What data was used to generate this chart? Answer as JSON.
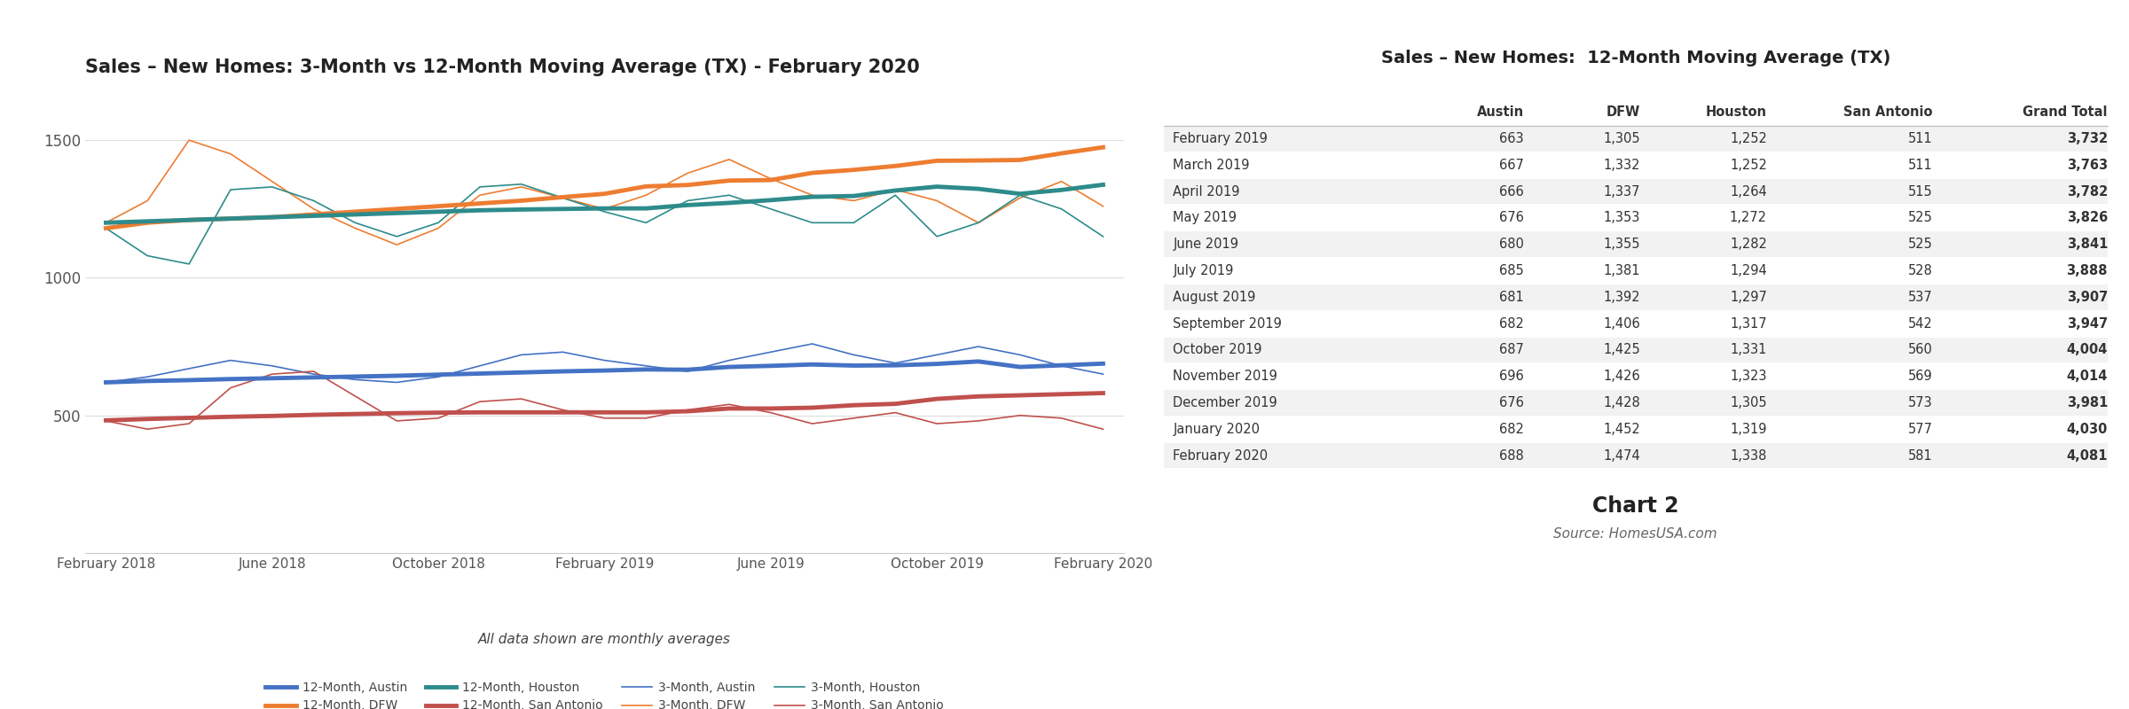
{
  "chart_title": "Sales – New Homes: 3-Month vs 12-Month Moving Average (TX) - February 2020",
  "table_title": "Sales – New Homes:  12-Month Moving Average (TX)",
  "chart2_label": "Chart 2",
  "source_label": "Source: HomesUSA.com",
  "xlabel_note": "All data shown are monthly averages",
  "x_tick_labels": [
    "February 2018",
    "June 2018",
    "October 2018",
    "February 2019",
    "June 2019",
    "October 2019",
    "February 2020"
  ],
  "x_tick_positions": [
    0,
    4,
    8,
    12,
    16,
    20,
    24
  ],
  "ylim": [
    0,
    1700
  ],
  "yticks": [
    500,
    1000,
    1500
  ],
  "series": {
    "ma12_austin": {
      "label": "12-Month, Austin",
      "color": "#4472C4",
      "linewidth": 3.5,
      "values": [
        620,
        625,
        628,
        632,
        635,
        638,
        641,
        644,
        648,
        652,
        656,
        660,
        663,
        667,
        666,
        676,
        680,
        685,
        681,
        682,
        687,
        696,
        676,
        682,
        688
      ]
    },
    "ma3_austin": {
      "label": "3-Month, Austin",
      "color": "#4472C4",
      "linewidth": 1.2,
      "values": [
        620,
        640,
        670,
        700,
        680,
        650,
        630,
        620,
        640,
        680,
        720,
        730,
        700,
        680,
        660,
        700,
        730,
        760,
        720,
        690,
        720,
        750,
        720,
        680,
        650
      ]
    },
    "ma12_dfw": {
      "label": "12-Month, DFW",
      "color": "#ED7D31",
      "linewidth": 3.5,
      "values": [
        1180,
        1200,
        1210,
        1215,
        1220,
        1230,
        1240,
        1250,
        1260,
        1270,
        1280,
        1293,
        1305,
        1332,
        1337,
        1353,
        1355,
        1381,
        1392,
        1406,
        1425,
        1426,
        1428,
        1452,
        1474
      ]
    },
    "ma3_dfw": {
      "label": "3-Month, DFW",
      "color": "#ED7D31",
      "linewidth": 1.2,
      "values": [
        1200,
        1280,
        1500,
        1450,
        1350,
        1250,
        1180,
        1120,
        1180,
        1300,
        1330,
        1290,
        1250,
        1300,
        1380,
        1430,
        1360,
        1300,
        1280,
        1320,
        1280,
        1200,
        1290,
        1350,
        1260
      ]
    },
    "ma12_houston": {
      "label": "12-Month, Houston",
      "color": "#2E8B8B",
      "linewidth": 3.5,
      "values": [
        1200,
        1205,
        1210,
        1215,
        1220,
        1225,
        1230,
        1235,
        1240,
        1245,
        1248,
        1250,
        1252,
        1252,
        1264,
        1272,
        1282,
        1294,
        1297,
        1317,
        1331,
        1323,
        1305,
        1319,
        1338
      ]
    },
    "ma3_houston": {
      "label": "3-Month, Houston",
      "color": "#2E8B8B",
      "linewidth": 1.2,
      "values": [
        1180,
        1080,
        1050,
        1320,
        1330,
        1280,
        1200,
        1150,
        1200,
        1330,
        1340,
        1290,
        1240,
        1200,
        1280,
        1300,
        1250,
        1200,
        1200,
        1300,
        1150,
        1200,
        1300,
        1250,
        1150
      ]
    },
    "ma12_sa": {
      "label": "12-Month, San Antonio",
      "color": "#C0504D",
      "linewidth": 3.5,
      "values": [
        482,
        487,
        491,
        495,
        498,
        502,
        505,
        508,
        510,
        511,
        511,
        511,
        511,
        511,
        515,
        525,
        525,
        528,
        537,
        542,
        560,
        569,
        573,
        577,
        581
      ]
    },
    "ma3_sa": {
      "label": "3-Month, San Antonio",
      "color": "#C0504D",
      "linewidth": 1.2,
      "values": [
        480,
        450,
        470,
        600,
        650,
        660,
        570,
        480,
        490,
        550,
        560,
        520,
        490,
        490,
        520,
        540,
        510,
        470,
        490,
        510,
        470,
        480,
        500,
        490,
        450
      ]
    }
  },
  "table_columns": [
    "",
    "Austin",
    "DFW",
    "Houston",
    "San Antonio",
    "Grand Total"
  ],
  "table_rows": [
    [
      "February 2019",
      "663",
      "1,305",
      "1,252",
      "511",
      "3,732"
    ],
    [
      "March 2019",
      "667",
      "1,332",
      "1,252",
      "511",
      "3,763"
    ],
    [
      "April 2019",
      "666",
      "1,337",
      "1,264",
      "515",
      "3,782"
    ],
    [
      "May 2019",
      "676",
      "1,353",
      "1,272",
      "525",
      "3,826"
    ],
    [
      "June 2019",
      "680",
      "1,355",
      "1,282",
      "525",
      "3,841"
    ],
    [
      "July 2019",
      "685",
      "1,381",
      "1,294",
      "528",
      "3,888"
    ],
    [
      "August 2019",
      "681",
      "1,392",
      "1,297",
      "537",
      "3,907"
    ],
    [
      "September 2019",
      "682",
      "1,406",
      "1,317",
      "542",
      "3,947"
    ],
    [
      "October 2019",
      "687",
      "1,425",
      "1,331",
      "560",
      "4,004"
    ],
    [
      "November 2019",
      "696",
      "1,426",
      "1,323",
      "569",
      "4,014"
    ],
    [
      "December 2019",
      "676",
      "1,428",
      "1,305",
      "573",
      "3,981"
    ],
    [
      "January 2020",
      "682",
      "1,452",
      "1,319",
      "577",
      "4,030"
    ],
    [
      "February 2020",
      "688",
      "1,474",
      "1,338",
      "581",
      "4,081"
    ]
  ],
  "legend_items": [
    {
      "label": "12-Month, Austin",
      "color": "#4472C4",
      "linewidth": 3.5
    },
    {
      "label": "12-Month, DFW",
      "color": "#ED7D31",
      "linewidth": 3.5
    },
    {
      "label": "12-Month, Houston",
      "color": "#2E8B8B",
      "linewidth": 3.5
    },
    {
      "label": "12-Month, San Antonio",
      "color": "#C0504D",
      "linewidth": 3.5
    },
    {
      "label": "3-Month, Austin",
      "color": "#4472C4",
      "linewidth": 1.2
    },
    {
      "label": "3-Month, DFW",
      "color": "#ED7D31",
      "linewidth": 1.2
    },
    {
      "label": "3-Month, Houston",
      "color": "#2E8B8B",
      "linewidth": 1.2
    },
    {
      "label": "3-Month, San Antonio",
      "color": "#C0504D",
      "linewidth": 1.2
    }
  ]
}
